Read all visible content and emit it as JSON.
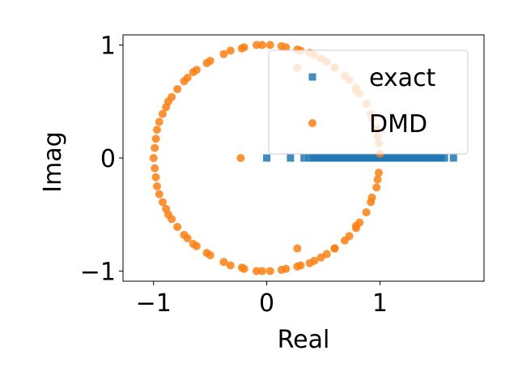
{
  "chart_data": {
    "type": "scatter",
    "xlabel": "Real",
    "ylabel": "Imag",
    "xlim": [
      -1.27,
      1.92
    ],
    "ylim": [
      -1.09,
      1.09
    ],
    "x_ticks": [
      {
        "value": -1,
        "label": "−1"
      },
      {
        "value": 0,
        "label": "0"
      },
      {
        "value": 1,
        "label": "1"
      }
    ],
    "y_ticks": [
      {
        "value": -1,
        "label": "−1"
      },
      {
        "value": 0,
        "label": "0"
      },
      {
        "value": 1,
        "label": "1"
      }
    ],
    "grid": false,
    "legend_position": "top-right",
    "series": [
      {
        "name": "exact",
        "marker": "square",
        "color": "#1f77b4",
        "x": [
          0.0,
          0.21,
          0.33,
          0.38,
          0.41,
          0.44,
          0.46,
          0.48,
          0.5,
          0.52,
          0.54,
          0.56,
          0.58,
          0.6,
          0.62,
          0.64,
          0.66,
          0.68,
          0.7,
          0.72,
          0.74,
          0.76,
          0.78,
          0.8,
          0.82,
          0.84,
          0.86,
          0.88,
          0.9,
          0.92,
          0.94,
          0.96,
          0.98,
          1.0,
          1.02,
          1.04,
          1.06,
          1.08,
          1.1,
          1.12,
          1.14,
          1.16,
          1.18,
          1.2,
          1.22,
          1.24,
          1.26,
          1.28,
          1.3,
          1.32,
          1.34,
          1.36,
          1.38,
          1.4,
          1.42,
          1.44,
          1.46,
          1.48,
          1.5,
          1.52,
          1.54,
          1.57,
          1.65
        ],
        "y": [
          0,
          0,
          0,
          0,
          0,
          0,
          0,
          0,
          0,
          0,
          0,
          0,
          0,
          0,
          0,
          0,
          0,
          0,
          0,
          0,
          0,
          0,
          0,
          0,
          0,
          0,
          0,
          0,
          0,
          0,
          0,
          0,
          0,
          0,
          0,
          0,
          0,
          0,
          0,
          0,
          0,
          0,
          0,
          0,
          0,
          0,
          0,
          0,
          0,
          0,
          0,
          0,
          0,
          0,
          0,
          0,
          0,
          0,
          0,
          0,
          0,
          0,
          0
        ]
      },
      {
        "name": "DMD",
        "marker": "circle",
        "color": "#ff7f0e",
        "x": [
          1.0,
          0.99,
          0.98,
          0.97,
          0.93,
          0.92,
          0.88,
          0.82,
          0.79,
          0.79,
          0.73,
          0.69,
          0.6,
          0.6,
          0.53,
          0.48,
          0.42,
          0.38,
          0.3,
          0.27,
          0.27,
          0.17,
          0.13,
          0.03,
          -0.04,
          -0.09,
          -0.2,
          -0.22,
          -0.32,
          -0.38,
          -0.5,
          -0.53,
          -0.62,
          -0.65,
          -0.7,
          -0.73,
          -0.79,
          -0.84,
          -0.87,
          -0.89,
          -0.92,
          -0.95,
          -0.97,
          -0.98,
          -0.99,
          -1.0,
          -0.99,
          -0.98,
          -0.97,
          -0.95,
          -0.92,
          -0.89,
          -0.87,
          -0.84,
          -0.79,
          -0.73,
          -0.7,
          -0.65,
          -0.62,
          -0.53,
          -0.5,
          -0.38,
          -0.32,
          -0.22,
          -0.2,
          -0.09,
          -0.04,
          0.03,
          0.13,
          0.17,
          0.27,
          0.27,
          0.3,
          0.38,
          0.42,
          0.48,
          0.53,
          0.6,
          0.6,
          0.69,
          0.73,
          0.79,
          0.79,
          0.82,
          0.88,
          0.92,
          0.93,
          0.97,
          0.98,
          0.99,
          -0.23
        ],
        "y": [
          0.04,
          0.13,
          0.19,
          0.26,
          0.35,
          0.39,
          0.48,
          0.57,
          0.6,
          0.62,
          0.69,
          0.73,
          0.8,
          0.8,
          0.85,
          0.88,
          0.91,
          0.93,
          0.95,
          0.8,
          0.96,
          0.98,
          0.99,
          1.0,
          1.0,
          1.0,
          0.98,
          0.97,
          0.95,
          0.92,
          0.86,
          0.84,
          0.78,
          0.76,
          0.71,
          0.68,
          0.61,
          0.54,
          0.5,
          0.45,
          0.39,
          0.32,
          0.25,
          0.17,
          0.09,
          0.0,
          -0.09,
          -0.17,
          -0.25,
          -0.32,
          -0.39,
          -0.45,
          -0.5,
          -0.54,
          -0.61,
          -0.68,
          -0.71,
          -0.76,
          -0.78,
          -0.84,
          -0.86,
          -0.92,
          -0.95,
          -0.97,
          -0.98,
          -1.0,
          -1.0,
          -1.0,
          -0.99,
          -0.98,
          -0.96,
          -0.8,
          -0.95,
          -0.93,
          -0.91,
          -0.88,
          -0.85,
          -0.8,
          -0.8,
          -0.73,
          -0.69,
          -0.62,
          -0.6,
          -0.57,
          -0.48,
          -0.39,
          -0.35,
          -0.26,
          -0.19,
          -0.13,
          0.0
        ]
      }
    ]
  }
}
